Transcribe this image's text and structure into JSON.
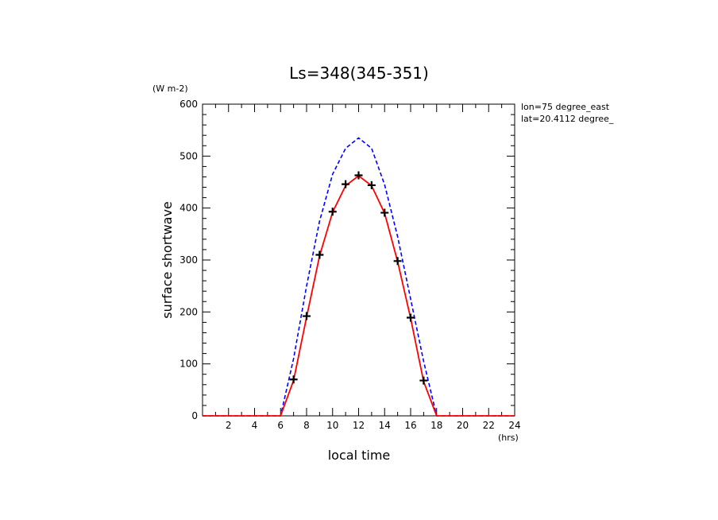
{
  "chart_data": {
    "type": "line",
    "title": "Ls=348(345-351)",
    "ylabel": "surface shortwave",
    "yunit": "(W m-2)",
    "xlabel": "local time",
    "xunit": "(hrs)",
    "annotations": [
      "lon=75 degree_east",
      "lat=20.4112 degree_"
    ],
    "xlim": [
      0,
      24
    ],
    "ylim": [
      0,
      600
    ],
    "xticks": [
      2,
      4,
      6,
      8,
      10,
      12,
      14,
      16,
      18,
      20,
      22,
      24
    ],
    "yticks": [
      0,
      100,
      200,
      300,
      400,
      500,
      600
    ],
    "series": [
      {
        "name": "blue dashed",
        "style": "dashed",
        "color": "#0000ff",
        "x": [
          0,
          1,
          2,
          3,
          4,
          5,
          6,
          7,
          8,
          9,
          10,
          11,
          12,
          13,
          14,
          15,
          16,
          17,
          18,
          19,
          20,
          21,
          22,
          23,
          24
        ],
        "y": [
          0,
          0,
          0,
          0,
          0,
          0,
          0,
          110,
          250,
          375,
          465,
          515,
          535,
          515,
          445,
          345,
          225,
          105,
          0,
          0,
          0,
          0,
          0,
          0,
          0
        ]
      },
      {
        "name": "red solid",
        "style": "solid",
        "color": "#ff0000",
        "x": [
          0,
          1,
          2,
          3,
          4,
          5,
          6,
          7,
          8,
          9,
          10,
          11,
          12,
          13,
          14,
          15,
          16,
          17,
          18,
          19,
          20,
          21,
          22,
          23,
          24
        ],
        "y": [
          0,
          0,
          0,
          0,
          0,
          0,
          0,
          68,
          190,
          308,
          392,
          443,
          462,
          443,
          390,
          297,
          188,
          66,
          0,
          0,
          0,
          0,
          0,
          0,
          0
        ]
      },
      {
        "name": "black crosses",
        "style": "markers",
        "color": "#000000",
        "x": [
          7,
          8,
          9,
          10,
          11,
          12,
          13,
          14,
          15,
          16,
          17
        ],
        "y": [
          70,
          192,
          310,
          393,
          446,
          463,
          444,
          391,
          298,
          189,
          68
        ]
      }
    ]
  }
}
